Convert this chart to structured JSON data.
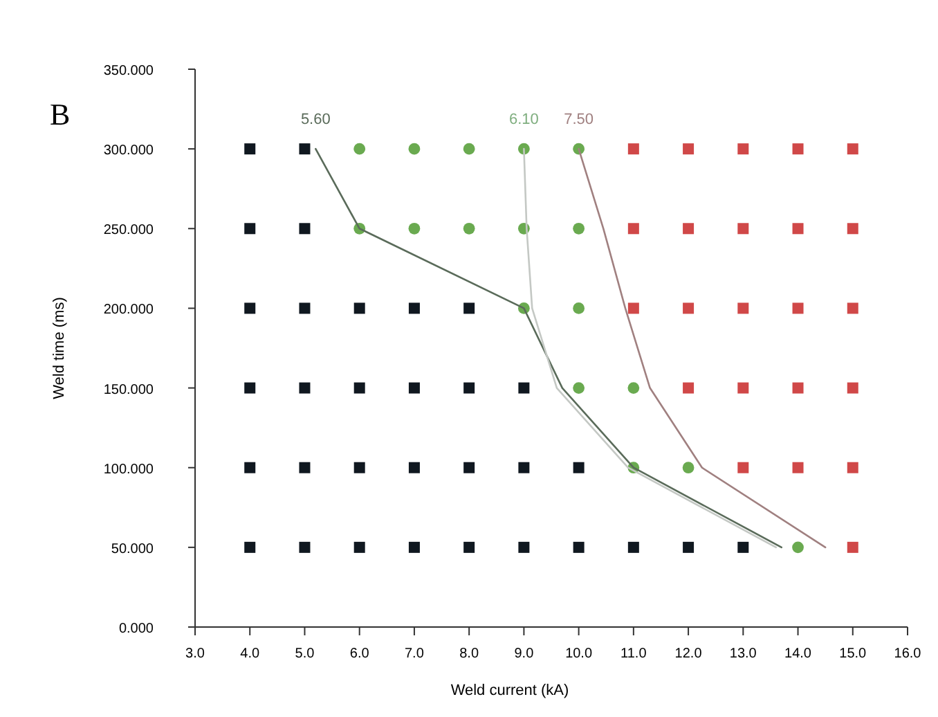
{
  "chart_data": {
    "type": "scatter",
    "xlabel": "Weld current (kA)",
    "ylabel": "Weld time (ms)",
    "annotations": [
      "B"
    ],
    "xlim": [
      3,
      16
    ],
    "xticks": [
      {
        "value": 3,
        "label": "3.0"
      },
      {
        "value": 4,
        "label": "4.0"
      },
      {
        "value": 5,
        "label": "5.0"
      },
      {
        "value": 6,
        "label": "6.0"
      },
      {
        "value": 7,
        "label": "7.0"
      },
      {
        "value": 8,
        "label": "8.0"
      },
      {
        "value": 9,
        "label": "9.0"
      },
      {
        "value": 10,
        "label": "10.0"
      },
      {
        "value": 11,
        "label": "11.0"
      },
      {
        "value": 12,
        "label": "12.0"
      },
      {
        "value": 13,
        "label": "13.0"
      },
      {
        "value": 14,
        "label": "14.0"
      },
      {
        "value": 15,
        "label": "15.0"
      },
      {
        "value": 16,
        "label": "16.0"
      }
    ],
    "ylim": [
      0,
      350
    ],
    "yticks": [
      {
        "value": 0,
        "label": "0.000"
      },
      {
        "value": 50,
        "label": "50.000"
      },
      {
        "value": 100,
        "label": "100.000"
      },
      {
        "value": 150,
        "label": "150.000"
      },
      {
        "value": 200,
        "label": "200.000"
      },
      {
        "value": 250,
        "label": "250.000"
      },
      {
        "value": 300,
        "label": "300.000"
      },
      {
        "value": 350,
        "label": "350.000"
      }
    ],
    "grid": false,
    "series": [
      {
        "marker": "square",
        "color": "#101820",
        "x": [
          4,
          5,
          4,
          5,
          4,
          5,
          6,
          7,
          8,
          4,
          5,
          6,
          7,
          8,
          9,
          4,
          5,
          6,
          7,
          8,
          9,
          10,
          4,
          5,
          6,
          7,
          8,
          9,
          10,
          11,
          12,
          13
        ],
        "values": [
          300,
          300,
          250,
          250,
          200,
          200,
          200,
          200,
          200,
          150,
          150,
          150,
          150,
          150,
          150,
          100,
          100,
          100,
          100,
          100,
          100,
          100,
          50,
          50,
          50,
          50,
          50,
          50,
          50,
          50,
          50,
          50
        ]
      },
      {
        "marker": "circle",
        "color": "#6aaa50",
        "x": [
          6,
          7,
          8,
          9,
          10,
          6,
          7,
          8,
          9,
          10,
          9,
          10,
          10,
          11,
          11,
          12,
          14
        ],
        "values": [
          300,
          300,
          300,
          300,
          300,
          250,
          250,
          250,
          250,
          250,
          200,
          200,
          150,
          150,
          100,
          100,
          50
        ]
      },
      {
        "marker": "square",
        "color": "#d04848",
        "x": [
          11,
          12,
          13,
          14,
          15,
          11,
          12,
          13,
          14,
          15,
          11,
          12,
          13,
          14,
          15,
          12,
          13,
          14,
          15,
          13,
          14,
          15,
          15
        ],
        "values": [
          300,
          300,
          300,
          300,
          300,
          250,
          250,
          250,
          250,
          250,
          200,
          200,
          200,
          200,
          200,
          150,
          150,
          150,
          150,
          100,
          100,
          100,
          50
        ]
      },
      {
        "type": "line",
        "name": "5.60",
        "color": "#5a6b5a",
        "marker": "none",
        "x": [
          5.2,
          6,
          9,
          9.7,
          11,
          13.7
        ],
        "values": [
          300,
          250,
          200,
          150,
          100,
          50
        ]
      },
      {
        "type": "line",
        "name": "6.10",
        "color": "#c4c8c4",
        "marker": "none",
        "x": [
          9,
          9.05,
          9.15,
          9.6,
          10.9,
          13.6
        ],
        "values": [
          300,
          250,
          200,
          150,
          100,
          50
        ]
      },
      {
        "type": "line",
        "name": "7.50",
        "color": "#a08080",
        "marker": "none",
        "x": [
          10,
          10.45,
          10.85,
          11.3,
          12.25,
          14.5
        ],
        "values": [
          300,
          250,
          200,
          150,
          100,
          50
        ]
      }
    ]
  }
}
